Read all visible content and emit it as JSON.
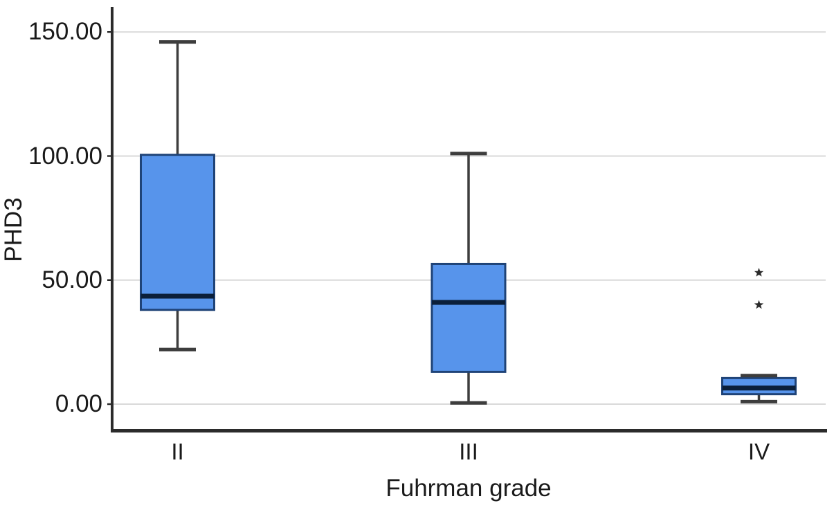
{
  "chart_data": {
    "type": "boxplot",
    "title": "",
    "xlabel": "Fuhrman grade",
    "ylabel": "PHD3",
    "categories": [
      "II",
      "III",
      "IV"
    ],
    "yticks": [
      0,
      50,
      100,
      150
    ],
    "ytick_labels": [
      "0.00",
      "50.00",
      "100.00",
      "150.00"
    ],
    "ylim": [
      -10.5,
      160
    ],
    "grid": "horizontal",
    "legend": "none",
    "outlier_marker": "star (extreme outliers)",
    "series": [
      {
        "category": "II",
        "whisker_low": 22,
        "q1": 38,
        "median": 43.5,
        "q3": 100.5,
        "whisker_high": 146,
        "extreme_outliers": []
      },
      {
        "category": "III",
        "whisker_low": 0.5,
        "q1": 13,
        "median": 41,
        "q3": 56.5,
        "whisker_high": 101,
        "extreme_outliers": []
      },
      {
        "category": "IV",
        "whisker_low": 1,
        "q1": 4,
        "median": 6.5,
        "q3": 10.5,
        "whisker_high": 11.5,
        "extreme_outliers": [
          40,
          53
        ]
      }
    ],
    "colors": {
      "box_fill": "#5794EB",
      "box_border": "#1F4377",
      "median": "#0B1F3A",
      "whisker": "#3D3D3D",
      "gridline": "#D9D9D9",
      "axis": "#2B2B2B",
      "outlier": "#2B2B2B",
      "text": "#1A1A1A",
      "background": "#FFFFFF"
    }
  }
}
